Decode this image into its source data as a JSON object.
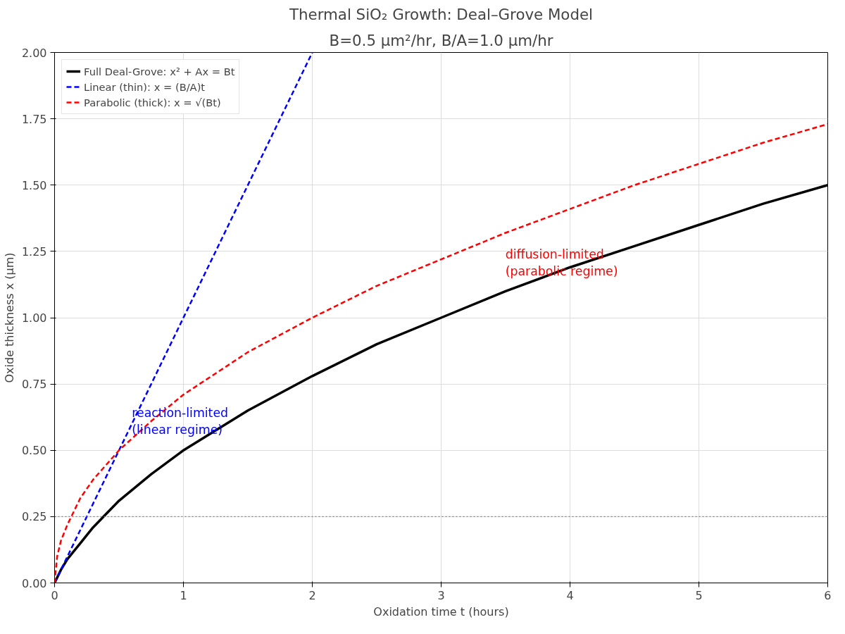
{
  "chart_data": {
    "type": "line",
    "title": "Thermal SiO₂ Growth: Deal–Grove Model",
    "subtitle": "B=0.5 µm²/hr, B/A=1.0 µm/hr",
    "xlabel": "Oxidation time t (hours)",
    "ylabel": "Oxide thickness x (µm)",
    "series": [
      {
        "name": "Full Deal-Grove: x² + Ax = Bt",
        "color": "#000000",
        "line_style": "solid",
        "x": [
          0,
          0.05,
          0.1,
          0.2,
          0.3,
          0.5,
          0.75,
          1,
          1.5,
          2,
          2.5,
          3,
          3.5,
          4,
          4.5,
          5,
          5.5,
          6
        ],
        "values": [
          0,
          0.05,
          0.09,
          0.15,
          0.21,
          0.31,
          0.41,
          0.5,
          0.65,
          0.78,
          0.9,
          1.0,
          1.1,
          1.19,
          1.27,
          1.35,
          1.43,
          1.5
        ]
      },
      {
        "name": "Linear (thin): x = (B/A)t",
        "color": "#0000ff",
        "line_style": "dashed",
        "x": [
          0,
          2
        ],
        "values": [
          0,
          2
        ]
      },
      {
        "name": "Parabolic (thick): x = √(Bt)",
        "color": "#ff0000",
        "line_style": "dashed",
        "x": [
          0,
          0.02,
          0.05,
          0.1,
          0.2,
          0.3,
          0.5,
          0.75,
          1,
          1.5,
          2,
          2.5,
          3,
          3.5,
          4,
          4.5,
          5,
          5.5,
          6
        ],
        "values": [
          0,
          0.1,
          0.16,
          0.22,
          0.32,
          0.39,
          0.5,
          0.61,
          0.71,
          0.87,
          1.0,
          1.12,
          1.22,
          1.32,
          1.41,
          1.5,
          1.58,
          1.66,
          1.73
        ]
      }
    ],
    "annotations": [
      "reaction-limited\n(linear regime)",
      "diffusion-limited\n(parabolic regime)"
    ],
    "ref_lines": [
      {
        "axis": "y",
        "value": 0.25,
        "color": "#808080",
        "line_style": "dotted"
      }
    ],
    "xlim": [
      0,
      6
    ],
    "ylim": [
      0,
      2.0
    ],
    "xticks": [
      0,
      1,
      2,
      3,
      4,
      5,
      6
    ],
    "yticks": [
      {
        "value": 0,
        "label": "0.00"
      },
      {
        "value": 0.25,
        "label": "0.25"
      },
      {
        "value": 0.5,
        "label": "0.50"
      },
      {
        "value": 0.75,
        "label": "0.75"
      },
      {
        "value": 1.0,
        "label": "1.00"
      },
      {
        "value": 1.25,
        "label": "1.25"
      },
      {
        "value": 1.5,
        "label": "1.50"
      },
      {
        "value": 1.75,
        "label": "1.75"
      },
      {
        "value": 2.0,
        "label": "2.00"
      }
    ],
    "grid": true,
    "legend": "top left"
  }
}
